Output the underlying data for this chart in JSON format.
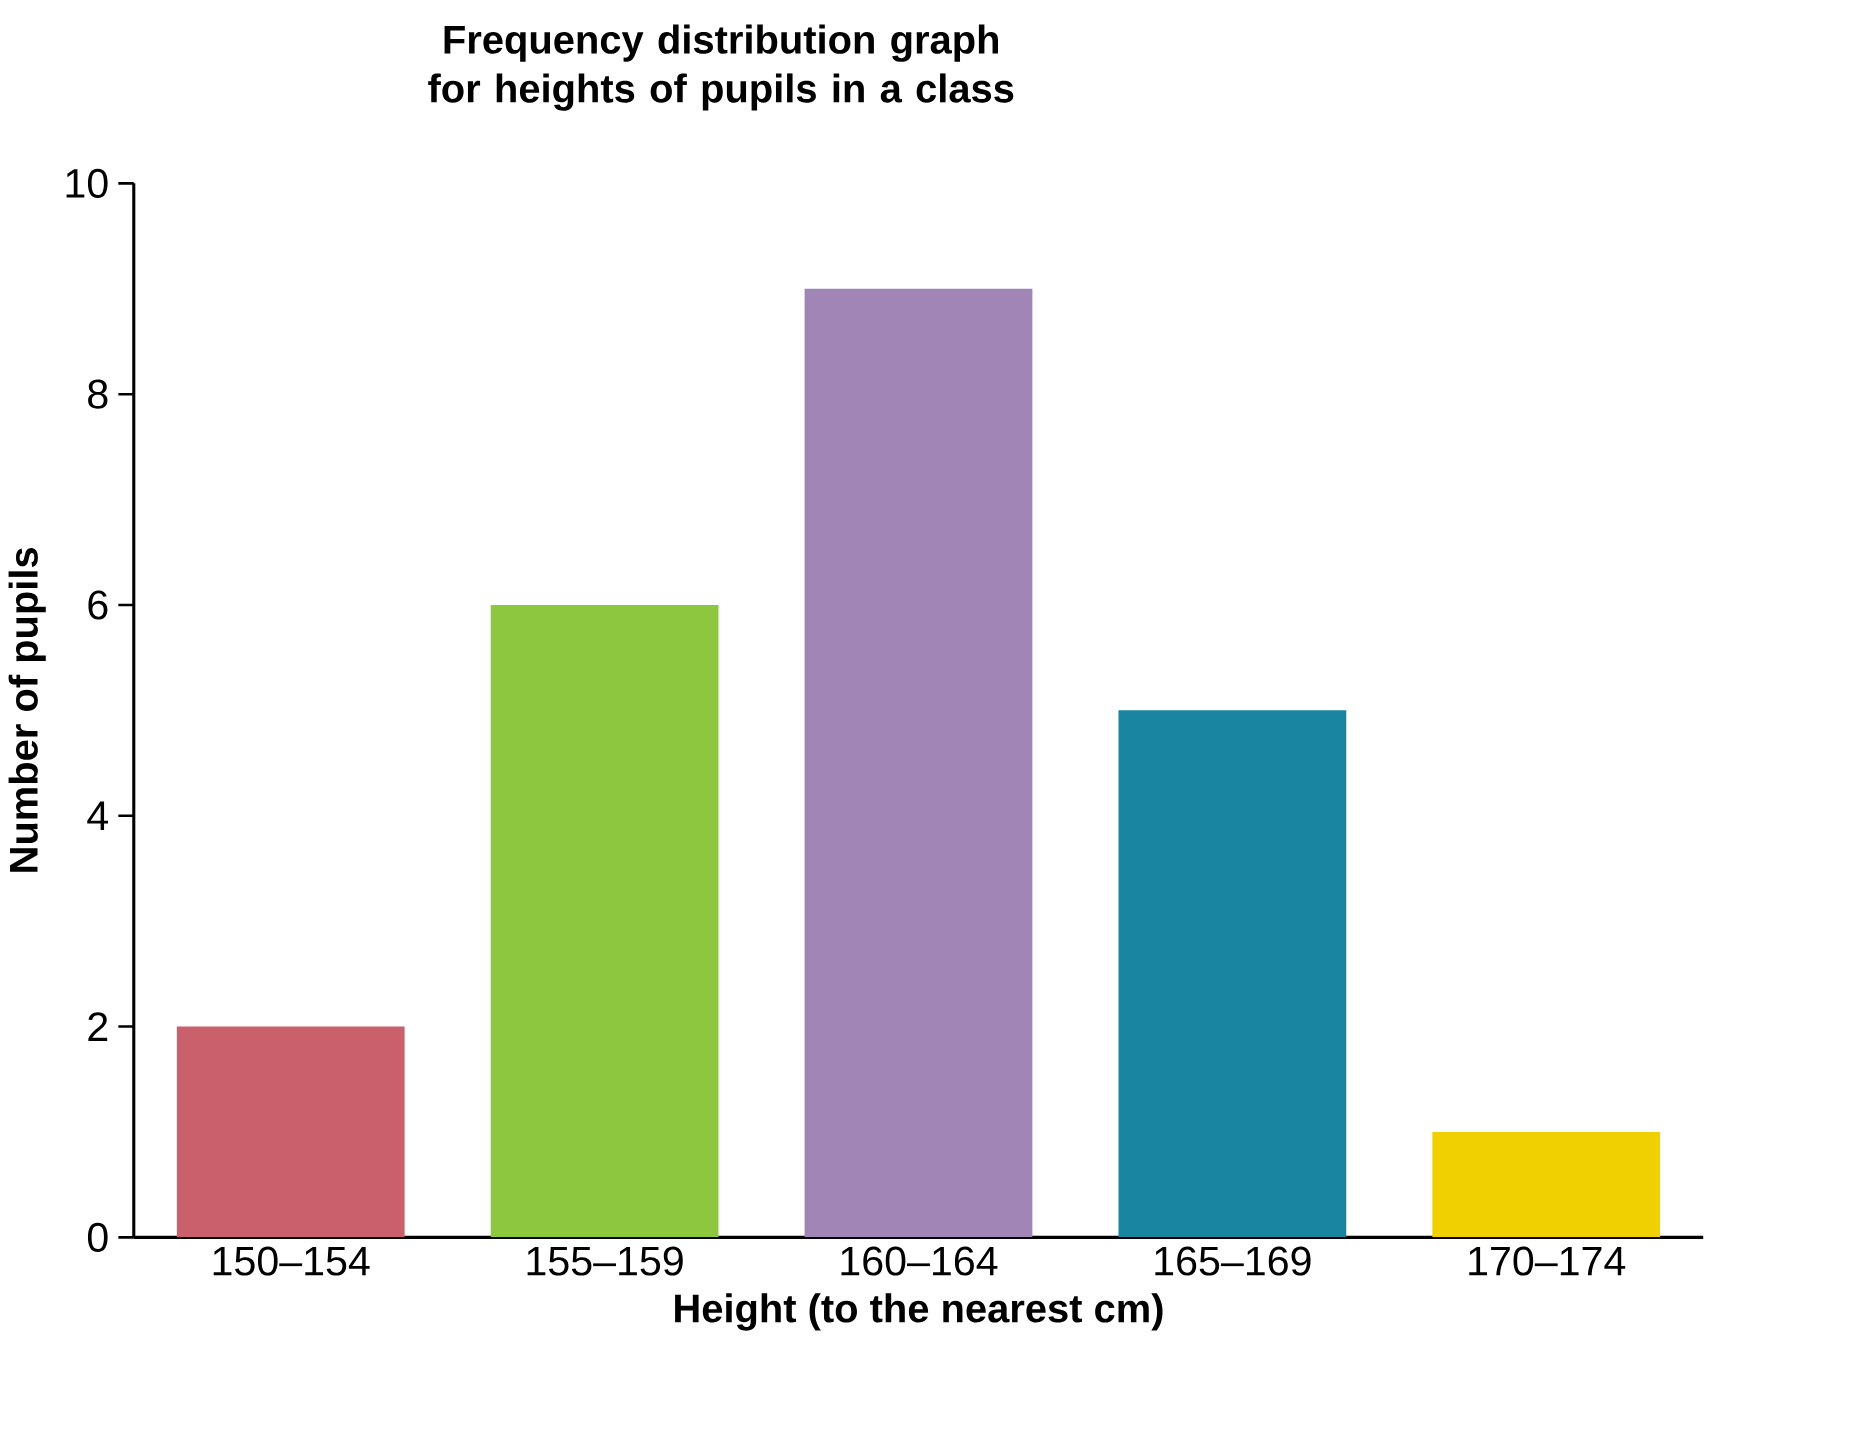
{
  "chart_data": {
    "type": "bar",
    "title": "Frequency distribution graph for heights of pupils in a class",
    "xlabel": "Height (to the nearest cm)",
    "ylabel": "Number of pupils",
    "categories": [
      "150–154",
      "155–159",
      "160–164",
      "165–169",
      "170–174"
    ],
    "values": [
      2,
      6,
      9,
      5,
      1
    ],
    "colors": [
      "#c9606b",
      "#8dc63f",
      "#a085b6",
      "#1a85a0",
      "#f0d000"
    ],
    "ylim": [
      0,
      10
    ],
    "yticks": [
      0,
      2,
      4,
      6,
      8,
      10
    ]
  }
}
